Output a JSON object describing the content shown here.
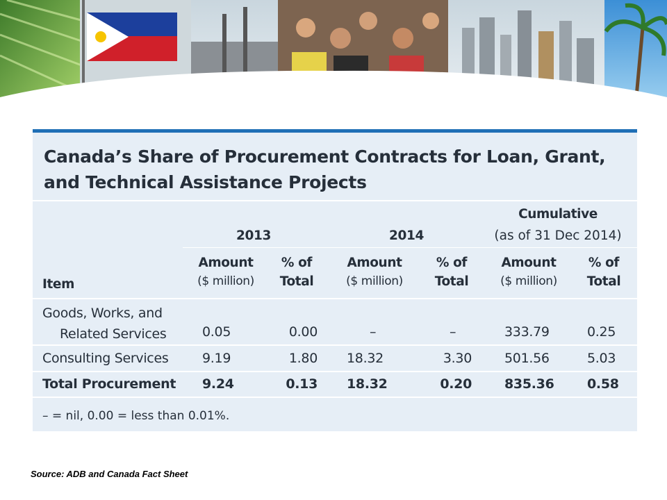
{
  "title": "Canada’s Share of Procurement Contracts for Loan, Grant, and Technical Assistance Projects",
  "title_lines": [
    "Canada’s Share of Procurement Contracts for Loan, Grant,",
    "and Technical Assistance Projects"
  ],
  "table": {
    "group_headers": {
      "y2013": "2013",
      "y2014": "2014",
      "cumulative_line1": "Cumulative",
      "cumulative_line2": "(as of 31 Dec 2014)"
    },
    "columns": {
      "item": "Item",
      "amount_line1": "Amount",
      "amount_line2": "($ million)",
      "pct_line1": "% of",
      "pct_line2": "Total"
    },
    "rows": [
      {
        "item_line1": "Goods, Works, and",
        "item_line2": "Related Services",
        "amt_2013": "0.05",
        "pct_2013": "0.00",
        "amt_2014": "–",
        "pct_2014": "–",
        "amt_cum": "333.79",
        "pct_cum": "0.25"
      },
      {
        "item": "Consulting Services",
        "amt_2013": "9.19",
        "pct_2013": "1.80",
        "amt_2014": "18.32",
        "pct_2014": "3.30",
        "amt_cum": "501.56",
        "pct_cum": "5.03"
      },
      {
        "item": "Total Procurement",
        "amt_2013": "9.24",
        "pct_2013": "0.13",
        "amt_2014": "18.32",
        "pct_2014": "0.20",
        "amt_cum": "835.36",
        "pct_cum": "0.58"
      }
    ],
    "note": "– = nil, 0.00 = less than 0.01%."
  },
  "source": "Source:  ADB and Canada Fact Sheet",
  "colors": {
    "accent": "#1f6fb6",
    "table_bg": "#e6eef6",
    "text": "#262f3a"
  }
}
